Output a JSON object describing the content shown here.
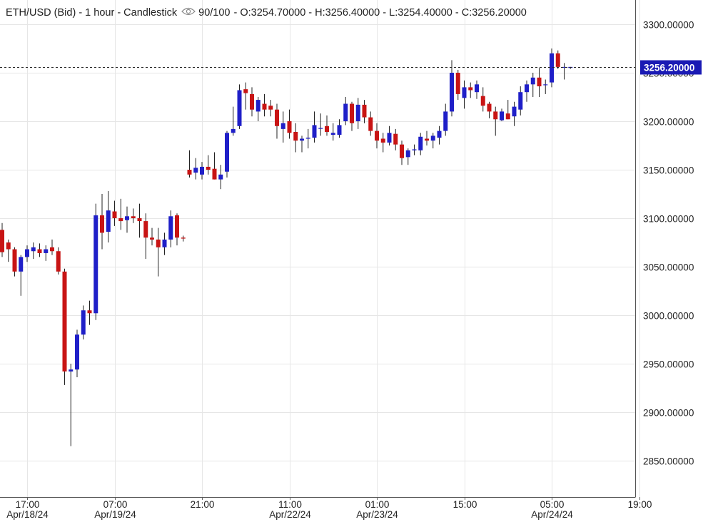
{
  "header": {
    "symbol": "ETH/USD (Bid) - 1 hour - Candlestick",
    "zoom": "90/100",
    "ohlc": "- O:3254.70000 - H:3256.40000 - L:3254.40000 - C:3256.20000"
  },
  "icons": {
    "view": "eye-icon"
  },
  "colors": {
    "up": "#1f1fc8",
    "down": "#c81414",
    "grid": "#e6e6e6",
    "tag_bg": "#1a1ab4"
  },
  "chart_data": {
    "type": "candlestick",
    "ylim": [
      2815,
      3320
    ],
    "yticks": [
      3300,
      3250,
      3200,
      3150,
      3100,
      3050,
      3000,
      2950,
      2900,
      2850
    ],
    "ytick_labels": [
      "3300.00000",
      "3250.00000",
      "3200.00000",
      "3150.00000",
      "3100.00000",
      "3050.00000",
      "3000.00000",
      "2950.00000",
      "2900.00000",
      "2850.00000"
    ],
    "xticks": [
      {
        "time": "17:00",
        "date": "Apr/18/24",
        "index": 4
      },
      {
        "time": "07:00",
        "date": "Apr/19/24",
        "index": 18
      },
      {
        "time": "21:00",
        "date": "",
        "index": 32
      },
      {
        "time": "11:00",
        "date": "Apr/22/24",
        "index": 46
      },
      {
        "time": "01:00",
        "date": "Apr/23/24",
        "index": 60
      },
      {
        "time": "15:00",
        "date": "",
        "index": 74
      },
      {
        "time": "05:00",
        "date": "Apr/24/24",
        "index": 88
      },
      {
        "time": "19:00",
        "date": "",
        "index": 102
      }
    ],
    "last_price": 3256.2,
    "last_price_label": "3256.20000",
    "candles": [
      [
        3088,
        3095,
        3060,
        3065
      ],
      [
        3075,
        3078,
        3055,
        3068
      ],
      [
        3068,
        3070,
        3040,
        3045
      ],
      [
        3045,
        3062,
        3020,
        3060
      ],
      [
        3060,
        3072,
        3055,
        3068
      ],
      [
        3066,
        3075,
        3058,
        3070
      ],
      [
        3068,
        3074,
        3060,
        3064
      ],
      [
        3064,
        3072,
        3056,
        3068
      ],
      [
        3070,
        3078,
        3062,
        3066
      ],
      [
        3066,
        3070,
        3042,
        3045
      ],
      [
        3045,
        3048,
        2928,
        2942
      ],
      [
        2942,
        2950,
        2865,
        2944
      ],
      [
        2944,
        2985,
        2936,
        2980
      ],
      [
        2980,
        3010,
        2975,
        3005
      ],
      [
        3005,
        3015,
        2990,
        3002
      ],
      [
        3002,
        3115,
        2995,
        3103
      ],
      [
        3103,
        3125,
        3068,
        3085
      ],
      [
        3086,
        3128,
        3075,
        3108
      ],
      [
        3107,
        3118,
        3092,
        3100
      ],
      [
        3100,
        3120,
        3088,
        3097
      ],
      [
        3098,
        3112,
        3085,
        3102
      ],
      [
        3102,
        3110,
        3095,
        3100
      ],
      [
        3100,
        3115,
        3080,
        3097
      ],
      [
        3097,
        3105,
        3058,
        3080
      ],
      [
        3080,
        3090,
        3072,
        3078
      ],
      [
        3078,
        3090,
        3040,
        3070
      ],
      [
        3070,
        3085,
        3062,
        3078
      ],
      [
        3078,
        3108,
        3070,
        3102
      ],
      [
        3103,
        3105,
        3072,
        3080
      ],
      [
        3080,
        3082,
        3076,
        3079
      ],
      [
        3150,
        3170,
        3142,
        3145
      ],
      [
        3147,
        3162,
        3140,
        3152
      ],
      [
        3145,
        3158,
        3140,
        3153
      ],
      [
        3153,
        3165,
        3145,
        3150
      ],
      [
        3151,
        3168,
        3140,
        3140
      ],
      [
        3140,
        3155,
        3130,
        3145
      ],
      [
        3148,
        3190,
        3142,
        3188
      ],
      [
        3188,
        3215,
        3185,
        3192
      ],
      [
        3195,
        3238,
        3192,
        3232
      ],
      [
        3233,
        3240,
        3212,
        3229
      ],
      [
        3228,
        3235,
        3205,
        3212
      ],
      [
        3210,
        3225,
        3200,
        3222
      ],
      [
        3218,
        3228,
        3205,
        3212
      ],
      [
        3216,
        3222,
        3205,
        3212
      ],
      [
        3212,
        3218,
        3182,
        3195
      ],
      [
        3192,
        3210,
        3178,
        3198
      ],
      [
        3200,
        3212,
        3182,
        3188
      ],
      [
        3189,
        3198,
        3168,
        3180
      ],
      [
        3180,
        3185,
        3168,
        3182
      ],
      [
        3182,
        3192,
        3172,
        3183
      ],
      [
        3183,
        3210,
        3178,
        3196
      ],
      [
        3193,
        3208,
        3185,
        3193
      ],
      [
        3195,
        3206,
        3185,
        3189
      ],
      [
        3186,
        3198,
        3180,
        3188
      ],
      [
        3186,
        3202,
        3183,
        3196
      ],
      [
        3200,
        3225,
        3196,
        3218
      ],
      [
        3218,
        3220,
        3190,
        3198
      ],
      [
        3200,
        3224,
        3192,
        3217
      ],
      [
        3217,
        3222,
        3198,
        3204
      ],
      [
        3204,
        3210,
        3185,
        3190
      ],
      [
        3190,
        3198,
        3172,
        3180
      ],
      [
        3182,
        3188,
        3168,
        3178
      ],
      [
        3178,
        3195,
        3175,
        3188
      ],
      [
        3187,
        3192,
        3170,
        3176
      ],
      [
        3176,
        3180,
        3155,
        3162
      ],
      [
        3163,
        3172,
        3155,
        3170
      ],
      [
        3170,
        3176,
        3165,
        3171
      ],
      [
        3170,
        3188,
        3165,
        3184
      ],
      [
        3182,
        3190,
        3175,
        3180
      ],
      [
        3180,
        3188,
        3172,
        3185
      ],
      [
        3183,
        3195,
        3176,
        3190
      ],
      [
        3190,
        3218,
        3185,
        3210
      ],
      [
        3210,
        3263,
        3205,
        3250
      ],
      [
        3250,
        3253,
        3222,
        3228
      ],
      [
        3224,
        3242,
        3213,
        3235
      ],
      [
        3235,
        3240,
        3224,
        3232
      ],
      [
        3230,
        3242,
        3223,
        3238
      ],
      [
        3226,
        3235,
        3210,
        3216
      ],
      [
        3218,
        3220,
        3203,
        3210
      ],
      [
        3210,
        3215,
        3185,
        3202
      ],
      [
        3201,
        3213,
        3200,
        3210
      ],
      [
        3208,
        3222,
        3202,
        3202
      ],
      [
        3205,
        3220,
        3195,
        3215
      ],
      [
        3212,
        3236,
        3206,
        3230
      ],
      [
        3230,
        3242,
        3220,
        3238
      ],
      [
        3238,
        3250,
        3225,
        3245
      ],
      [
        3245,
        3255,
        3225,
        3236
      ],
      [
        3238,
        3243,
        3228,
        3238
      ],
      [
        3240,
        3275,
        3235,
        3270
      ],
      [
        3270,
        3273,
        3254,
        3256
      ],
      [
        3256,
        3260,
        3243,
        3256
      ],
      [
        3255,
        3256,
        3254,
        3256
      ]
    ]
  }
}
